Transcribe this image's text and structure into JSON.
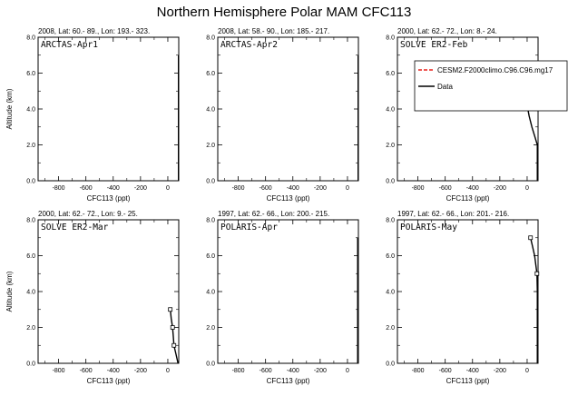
{
  "figure": {
    "title": "Northern Hemisphere Polar MAM CFC113"
  },
  "chart_data": [
    {
      "type": "line",
      "header": "2008, Lat:  60.- 89., Lon: 193.- 323.",
      "panel_label": "ARCTAS-Apr1",
      "xlabel": "CFC113 (ppt)",
      "ylabel": "Altitude (km)",
      "xlim": [
        -950,
        80
      ],
      "ylim": [
        0,
        8
      ],
      "xticks": [
        -800,
        -600,
        -400,
        -200,
        0
      ],
      "yticks": [
        0.0,
        2.0,
        4.0,
        6.0,
        8.0
      ],
      "series": [
        {
          "legend": "Data",
          "color": "#000000",
          "style": "solid",
          "points": [
            [
              78,
              0.0
            ],
            [
              78,
              2.0
            ],
            [
              78,
              4.0
            ],
            [
              78,
              6.0
            ],
            [
              78,
              7.0
            ]
          ],
          "markers": []
        }
      ]
    },
    {
      "type": "line",
      "header": "2008, Lat:  58.- 90., Lon: 185.- 217.",
      "panel_label": "ARCTAS-Apr2",
      "xlabel": "CFC113 (ppt)",
      "ylabel": "",
      "xlim": [
        -950,
        80
      ],
      "ylim": [
        0,
        8
      ],
      "xticks": [
        -800,
        -600,
        -400,
        -200,
        0
      ],
      "yticks": [
        0.0,
        2.0,
        4.0,
        6.0,
        8.0
      ],
      "series": [
        {
          "legend": "Data",
          "color": "#000000",
          "style": "solid",
          "points": [
            [
              78,
              0.0
            ],
            [
              78,
              2.0
            ],
            [
              78,
              4.0
            ],
            [
              78,
              6.0
            ],
            [
              78,
              7.0
            ]
          ],
          "markers": []
        }
      ]
    },
    {
      "type": "line",
      "header": "2000, Lat:  62.- 72., Lon:   8.- 24.",
      "panel_label": "SOLVE ER2-Feb",
      "xlabel": "CFC113 (ppt)",
      "ylabel": "",
      "xlim": [
        -950,
        80
      ],
      "ylim": [
        0,
        8
      ],
      "xticks": [
        -800,
        -600,
        -400,
        -200,
        0
      ],
      "yticks": [
        0.0,
        2.0,
        4.0,
        6.0,
        8.0
      ],
      "series": [
        {
          "legend": "Data",
          "color": "#000000",
          "style": "solid",
          "points": [
            [
              75,
              0.0
            ],
            [
              75,
              2.0
            ],
            [
              55,
              2.5
            ],
            [
              35,
              3.0
            ],
            [
              15,
              3.6
            ],
            [
              5,
              4.0
            ]
          ],
          "markers": []
        }
      ]
    },
    {
      "type": "line",
      "header": "2000, Lat:  62.- 72., Lon:   9.- 25.",
      "panel_label": "SOLVE ER2-Mar",
      "xlabel": "CFC113 (ppt)",
      "ylabel": "Altitude (km)",
      "xlim": [
        -950,
        80
      ],
      "ylim": [
        0,
        8
      ],
      "xticks": [
        -800,
        -600,
        -400,
        -200,
        0
      ],
      "yticks": [
        0.0,
        2.0,
        4.0,
        6.0,
        8.0
      ],
      "series": [
        {
          "legend": "Data",
          "color": "#000000",
          "style": "solid",
          "points": [
            [
              75,
              0.0
            ],
            [
              60,
              0.5
            ],
            [
              45,
              1.0
            ],
            [
              40,
              1.5
            ],
            [
              35,
              2.0
            ],
            [
              25,
              2.5
            ],
            [
              18,
              3.0
            ]
          ],
          "markers": [
            [
              18,
              3.0
            ],
            [
              35,
              2.0
            ],
            [
              45,
              1.0
            ]
          ]
        }
      ]
    },
    {
      "type": "line",
      "header": "1997, Lat:  62.- 66., Lon: 200.- 215.",
      "panel_label": "POLARIS-Apr",
      "xlabel": "CFC113 (ppt)",
      "ylabel": "",
      "xlim": [
        -950,
        80
      ],
      "ylim": [
        0,
        8
      ],
      "xticks": [
        -800,
        -600,
        -400,
        -200,
        0
      ],
      "yticks": [
        0.0,
        2.0,
        4.0,
        6.0,
        8.0
      ],
      "series": [
        {
          "legend": "Data",
          "color": "#000000",
          "style": "solid",
          "points": [
            [
              75,
              0.0
            ],
            [
              75,
              2.0
            ],
            [
              75,
              4.0
            ],
            [
              75,
              6.0
            ],
            [
              75,
              7.0
            ]
          ],
          "markers": []
        }
      ]
    },
    {
      "type": "line",
      "header": "1997, Lat:  62.- 66., Lon: 201.- 216.",
      "panel_label": "POLARIS-May",
      "xlabel": "CFC113 (ppt)",
      "ylabel": "",
      "xlim": [
        -950,
        80
      ],
      "ylim": [
        0,
        8
      ],
      "xticks": [
        -800,
        -600,
        -400,
        -200,
        0
      ],
      "yticks": [
        0.0,
        2.0,
        4.0,
        6.0,
        8.0
      ],
      "series": [
        {
          "legend": "Data",
          "color": "#000000",
          "style": "solid",
          "points": [
            [
              75,
              0.0
            ],
            [
              75,
              2.0
            ],
            [
              75,
              4.0
            ],
            [
              72,
              5.0
            ],
            [
              55,
              6.0
            ],
            [
              40,
              6.5
            ],
            [
              25,
              7.0
            ]
          ],
          "markers": [
            [
              25,
              7.0
            ],
            [
              72,
              5.0
            ]
          ]
        }
      ]
    }
  ],
  "legend": {
    "items": [
      {
        "label": "CESM2.F2000climo.C96.C96.mg17",
        "color": "#e8201a",
        "style": "dashed"
      },
      {
        "label": "Data",
        "color": "#000000",
        "style": "solid"
      }
    ]
  }
}
